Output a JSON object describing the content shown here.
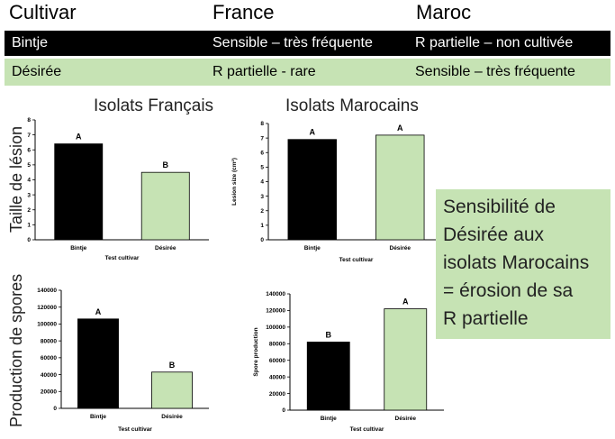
{
  "table": {
    "headers": [
      "Cultivar",
      "France",
      "Maroc"
    ],
    "rows": [
      [
        "Bintje",
        "Sensible – très fréquente",
        "R partielle – non cultivée"
      ],
      [
        "Désirée",
        "R partielle - rare",
        "Sensible – très fréquente"
      ]
    ]
  },
  "titles": {
    "left": "Isolats Français",
    "right": "Isolats Marocains"
  },
  "side_labels": {
    "top": "Taille de lésion",
    "bottom": "Production de spores"
  },
  "callout": "Sensibilité de\nDésirée aux\nisolats Marocains\n= érosion de sa\nR partielle",
  "colors": {
    "black_bar": "#000000",
    "green_bar": "#c6e3b4",
    "header_row": "#000000",
    "green_row": "#c6e3b4"
  },
  "chart_data": [
    {
      "type": "bar",
      "title": "",
      "xlabel": "Test cultivar",
      "ylabel": "",
      "categories": [
        "Bintje",
        "Désirée"
      ],
      "values": [
        6.4,
        4.5
      ],
      "letters": [
        "A",
        "B"
      ],
      "colors": [
        "#000000",
        "#c6e3b4"
      ],
      "ylim": [
        0,
        8
      ],
      "yticks": [
        "0",
        "1",
        "2",
        "3",
        "4",
        "5",
        "6",
        "7",
        "8"
      ]
    },
    {
      "type": "bar",
      "title": "",
      "xlabel": "Test cultivar",
      "ylabel": "Lesion size (cm²)",
      "categories": [
        "Bintje",
        "Désirée"
      ],
      "values": [
        6.9,
        7.2
      ],
      "letters": [
        "A",
        "A"
      ],
      "colors": [
        "#000000",
        "#c6e3b4"
      ],
      "ylim": [
        0,
        8
      ],
      "yticks": [
        "0",
        "1",
        "2",
        "3",
        "4",
        "5",
        "6",
        "7",
        "8"
      ]
    },
    {
      "type": "bar",
      "title": "",
      "xlabel": "Test cultivar",
      "ylabel": "",
      "categories": [
        "Bintje",
        "Désirée"
      ],
      "values": [
        106000,
        43000
      ],
      "letters": [
        "A",
        "B"
      ],
      "colors": [
        "#000000",
        "#c6e3b4"
      ],
      "ylim": [
        0,
        140000
      ],
      "yticks": [
        "0",
        "20000",
        "40000",
        "60000",
        "80000",
        "100000",
        "120000",
        "140000"
      ]
    },
    {
      "type": "bar",
      "title": "",
      "xlabel": "Test cultivar",
      "ylabel": "Spore production",
      "categories": [
        "Bintje",
        "Désirée"
      ],
      "values": [
        82000,
        122000
      ],
      "letters": [
        "B",
        "A"
      ],
      "colors": [
        "#000000",
        "#c6e3b4"
      ],
      "ylim": [
        0,
        140000
      ],
      "yticks": [
        "0",
        "20000",
        "40000",
        "60000",
        "80000",
        "100000",
        "120000",
        "140000"
      ]
    }
  ]
}
